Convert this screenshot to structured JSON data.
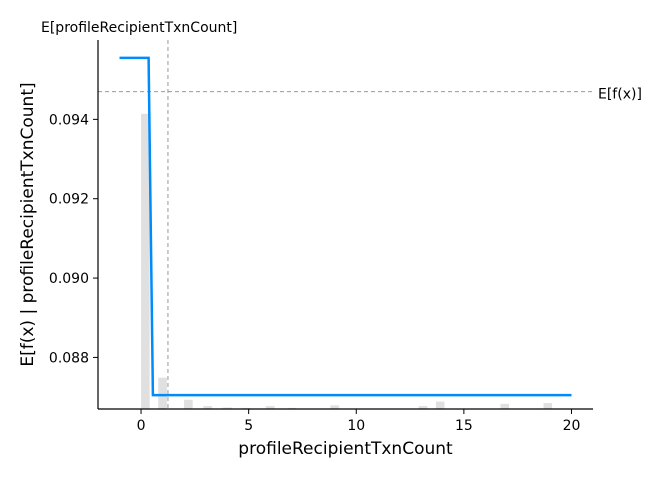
{
  "chart_data": {
    "type": "line",
    "xlabel": "profileRecipientTxnCount",
    "ylabel": "E[f(x) | profileRecipientTxnCount]",
    "xlim": [
      -2,
      21
    ],
    "ylim": [
      0.0867,
      0.096
    ],
    "x_ticks": [
      0,
      5,
      10,
      15,
      20
    ],
    "y_ticks": [
      0.088,
      0.09,
      0.092,
      0.094
    ],
    "x_tick_labels": [
      "0",
      "5",
      "10",
      "15",
      "20"
    ],
    "y_tick_labels": [
      "0.088",
      "0.090",
      "0.092",
      "0.094"
    ],
    "series": [
      {
        "x": [
          -1.0,
          0.35,
          0.55,
          20.0
        ],
        "y": [
          0.09555,
          0.09555,
          0.08705,
          0.08705
        ],
        "color": "#008bfb"
      }
    ],
    "histogram": {
      "color": "#e0e0e0",
      "bar_width": 0.4,
      "bins": [
        {
          "x": 0.2,
          "frac": 0.8
        },
        {
          "x": 1.0,
          "frac": 0.085
        },
        {
          "x": 2.2,
          "frac": 0.025
        },
        {
          "x": 3.1,
          "frac": 0.008
        },
        {
          "x": 4.0,
          "frac": 0.004
        },
        {
          "x": 4.9,
          "frac": 0.003
        },
        {
          "x": 6.0,
          "frac": 0.008
        },
        {
          "x": 7.0,
          "frac": 0.003
        },
        {
          "x": 9.0,
          "frac": 0.01
        },
        {
          "x": 13.1,
          "frac": 0.008
        },
        {
          "x": 13.9,
          "frac": 0.02
        },
        {
          "x": 16.9,
          "frac": 0.014
        },
        {
          "x": 18.9,
          "frac": 0.016
        }
      ]
    },
    "hline": {
      "y": 0.0947,
      "label": "E[f(x)]"
    },
    "vline": {
      "x": 1.25,
      "label": "E[profileRecipientTxnCount]"
    },
    "reference_line_color": "#999999",
    "grid": false
  }
}
